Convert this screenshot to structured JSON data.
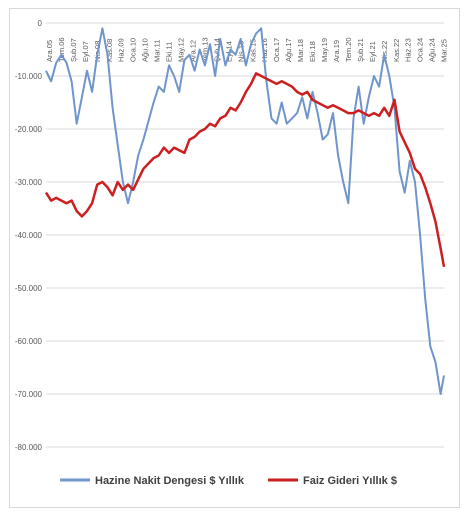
{
  "chart_data": {
    "type": "line",
    "title": "",
    "xlabel": "",
    "ylabel": "",
    "ylim": [
      -80000,
      0
    ],
    "y_ticks": [
      "0",
      "-10.000",
      "-20.000",
      "-30.000",
      "-40.000",
      "-50.000",
      "-60.000",
      "-70.000",
      "-80.000"
    ],
    "y_tick_values": [
      0,
      -10000,
      -20000,
      -30000,
      -40000,
      -50000,
      -60000,
      -70000,
      -80000
    ],
    "x_start": "Ara.05",
    "x_end": "May.25",
    "x_ticks": [
      "Ara.05",
      "Tem.06",
      "Şub.07",
      "Eyl.07",
      "Nis.08",
      "Kas.08",
      "Haz.09",
      "Oca.10",
      "Ağu.10",
      "Mar.11",
      "Eki.11",
      "May.12",
      "Ara.12",
      "Tem.13",
      "Şub.14",
      "Eyl.14",
      "Nis.15",
      "Kas.15",
      "Haz.16",
      "Oca.17",
      "Ağu.17",
      "Mar.18",
      "Eki.18",
      "May.19",
      "Ara.19",
      "Tem.20",
      "Şub.21",
      "Eyl.21",
      "Nis.22",
      "Kas.22",
      "Haz.23",
      "Oca.24",
      "Ağu.24",
      "Mar.25"
    ],
    "grid": "horizontal",
    "legend_position": "bottom",
    "series": [
      {
        "name": "Hazine Nakit Dengesi $ Yıllık",
        "color": "#6f95cc",
        "points": [
          [
            "2005-12",
            -9000
          ],
          [
            "2006-03",
            -11000
          ],
          [
            "2006-06",
            -7500
          ],
          [
            "2006-09",
            -6000
          ],
          [
            "2006-12",
            -7500
          ],
          [
            "2007-03",
            -11000
          ],
          [
            "2007-06",
            -19000
          ],
          [
            "2007-09",
            -14000
          ],
          [
            "2007-12",
            -9000
          ],
          [
            "2008-03",
            -13000
          ],
          [
            "2008-06",
            -6000
          ],
          [
            "2008-09",
            -1000
          ],
          [
            "2008-12",
            -6000
          ],
          [
            "2009-03",
            -16000
          ],
          [
            "2009-06",
            -23000
          ],
          [
            "2009-09",
            -30000
          ],
          [
            "2009-12",
            -34000
          ],
          [
            "2010-03",
            -30000
          ],
          [
            "2010-06",
            -25000
          ],
          [
            "2010-09",
            -22000
          ],
          [
            "2011-03",
            -15000
          ],
          [
            "2011-06",
            -12000
          ],
          [
            "2011-09",
            -13000
          ],
          [
            "2011-12",
            -8000
          ],
          [
            "2012-03",
            -10000
          ],
          [
            "2012-06",
            -13000
          ],
          [
            "2012-09",
            -7000
          ],
          [
            "2012-12",
            -6000
          ],
          [
            "2013-03",
            -9000
          ],
          [
            "2013-06",
            -5000
          ],
          [
            "2013-09",
            -8000
          ],
          [
            "2013-12",
            -4000
          ],
          [
            "2014-03",
            -10000
          ],
          [
            "2014-06",
            -3000
          ],
          [
            "2014-09",
            -8000
          ],
          [
            "2014-12",
            -5000
          ],
          [
            "2015-03",
            -6000
          ],
          [
            "2015-06",
            -3000
          ],
          [
            "2015-09",
            -8000
          ],
          [
            "2015-12",
            -4000
          ],
          [
            "2016-03",
            -2000
          ],
          [
            "2016-06",
            -1000
          ],
          [
            "2016-09",
            -11000
          ],
          [
            "2016-12",
            -18000
          ],
          [
            "2017-03",
            -19000
          ],
          [
            "2017-06",
            -15000
          ],
          [
            "2017-09",
            -19000
          ],
          [
            "2017-12",
            -18000
          ],
          [
            "2018-03",
            -17000
          ],
          [
            "2018-06",
            -14000
          ],
          [
            "2018-09",
            -18000
          ],
          [
            "2018-12",
            -13000
          ],
          [
            "2019-03",
            -17000
          ],
          [
            "2019-06",
            -22000
          ],
          [
            "2019-09",
            -21000
          ],
          [
            "2019-12",
            -17000
          ],
          [
            "2020-03",
            -25000
          ],
          [
            "2020-06",
            -30000
          ],
          [
            "2020-09",
            -34000
          ],
          [
            "2020-12",
            -18000
          ],
          [
            "2021-03",
            -12000
          ],
          [
            "2021-06",
            -19000
          ],
          [
            "2021-09",
            -14000
          ],
          [
            "2021-12",
            -10000
          ],
          [
            "2022-03",
            -12000
          ],
          [
            "2022-06",
            -6000
          ],
          [
            "2022-09",
            -10000
          ],
          [
            "2022-12",
            -16000
          ],
          [
            "2023-03",
            -28000
          ],
          [
            "2023-06",
            -32000
          ],
          [
            "2023-09",
            -26000
          ],
          [
            "2023-12",
            -30000
          ],
          [
            "2024-03",
            -40000
          ],
          [
            "2024-06",
            -52000
          ],
          [
            "2024-09",
            -61000
          ],
          [
            "2024-12",
            -64000
          ],
          [
            "2025-03",
            -70000
          ],
          [
            "2025-05",
            -66500
          ]
        ]
      },
      {
        "name": "Faiz Gideri Yıllık $",
        "color": "#cc1f1f",
        "points": [
          [
            "2005-12",
            -32000
          ],
          [
            "2006-03",
            -33500
          ],
          [
            "2006-06",
            -33000
          ],
          [
            "2006-09",
            -33500
          ],
          [
            "2006-12",
            -34000
          ],
          [
            "2007-03",
            -33500
          ],
          [
            "2007-06",
            -35500
          ],
          [
            "2007-09",
            -36500
          ],
          [
            "2007-12",
            -35500
          ],
          [
            "2008-03",
            -34000
          ],
          [
            "2008-06",
            -30500
          ],
          [
            "2008-09",
            -30000
          ],
          [
            "2008-12",
            -31000
          ],
          [
            "2009-03",
            -32500
          ],
          [
            "2009-06",
            -30000
          ],
          [
            "2009-09",
            -31500
          ],
          [
            "2009-12",
            -30500
          ],
          [
            "2010-03",
            -31500
          ],
          [
            "2010-06",
            -29500
          ],
          [
            "2010-09",
            -27500
          ],
          [
            "2011-03",
            -25500
          ],
          [
            "2011-06",
            -25000
          ],
          [
            "2011-09",
            -23500
          ],
          [
            "2011-12",
            -24500
          ],
          [
            "2012-03",
            -23500
          ],
          [
            "2012-06",
            -24000
          ],
          [
            "2012-09",
            -24500
          ],
          [
            "2012-12",
            -22000
          ],
          [
            "2013-03",
            -21500
          ],
          [
            "2013-06",
            -20500
          ],
          [
            "2013-09",
            -20000
          ],
          [
            "2013-12",
            -19000
          ],
          [
            "2014-03",
            -19500
          ],
          [
            "2014-06",
            -18000
          ],
          [
            "2014-09",
            -17500
          ],
          [
            "2014-12",
            -16000
          ],
          [
            "2015-03",
            -16500
          ],
          [
            "2015-06",
            -15000
          ],
          [
            "2015-09",
            -13000
          ],
          [
            "2015-12",
            -11500
          ],
          [
            "2016-03",
            -9500
          ],
          [
            "2016-06",
            -10000
          ],
          [
            "2016-09",
            -10500
          ],
          [
            "2016-12",
            -11000
          ],
          [
            "2017-03",
            -11500
          ],
          [
            "2017-06",
            -11000
          ],
          [
            "2017-09",
            -11500
          ],
          [
            "2017-12",
            -12000
          ],
          [
            "2018-03",
            -13000
          ],
          [
            "2018-06",
            -13500
          ],
          [
            "2018-09",
            -13000
          ],
          [
            "2018-12",
            -14500
          ],
          [
            "2019-03",
            -15000
          ],
          [
            "2019-06",
            -15500
          ],
          [
            "2019-09",
            -16000
          ],
          [
            "2019-12",
            -15500
          ],
          [
            "2020-03",
            -16000
          ],
          [
            "2020-06",
            -16500
          ],
          [
            "2020-09",
            -17000
          ],
          [
            "2020-12",
            -17000
          ],
          [
            "2021-03",
            -16500
          ],
          [
            "2021-06",
            -17000
          ],
          [
            "2021-09",
            -17500
          ],
          [
            "2021-12",
            -17000
          ],
          [
            "2022-03",
            -17500
          ],
          [
            "2022-06",
            -16000
          ],
          [
            "2022-09",
            -17500
          ],
          [
            "2022-12",
            -14500
          ],
          [
            "2023-03",
            -20500
          ],
          [
            "2023-06",
            -22500
          ],
          [
            "2023-09",
            -24500
          ],
          [
            "2023-12",
            -27500
          ],
          [
            "2024-03",
            -28500
          ],
          [
            "2024-06",
            -31000
          ],
          [
            "2024-09",
            -34000
          ],
          [
            "2024-12",
            -37500
          ],
          [
            "2025-03",
            -42500
          ],
          [
            "2025-05",
            -46000
          ]
        ]
      }
    ]
  }
}
